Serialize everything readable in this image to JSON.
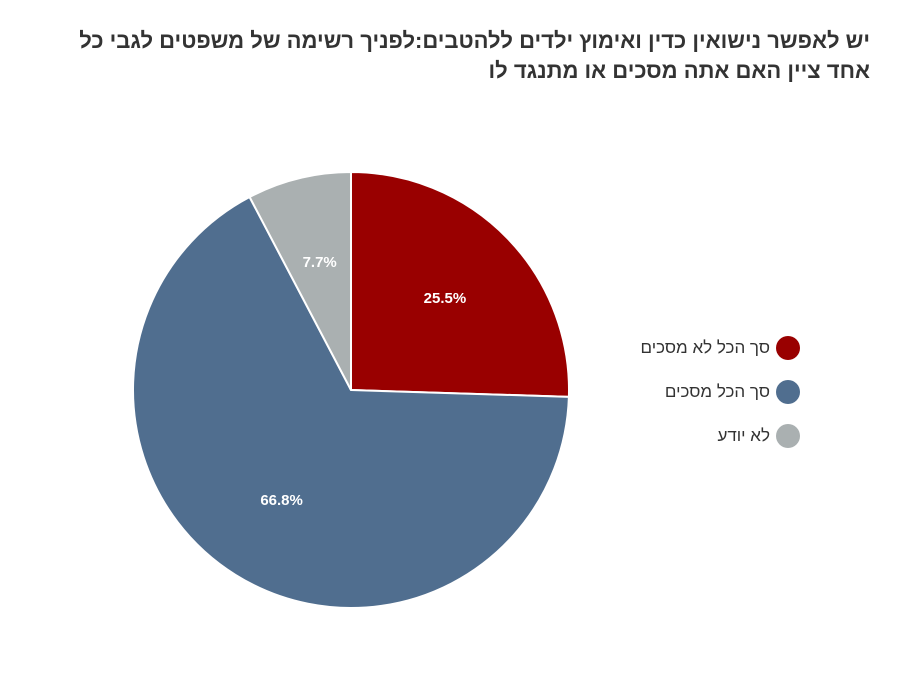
{
  "chart_data": {
    "type": "pie",
    "title_lines": [
      "יש לאפשר נישואין כדין ואימוץ ילדים ללהטבים:לפניך רשימה של משפטים  לגבי כל",
      "אחד ציין האם אתה מסכים או מתנגד לו"
    ],
    "slices": [
      {
        "label": "סך הכל לא מסכים",
        "value": 25.5,
        "display": "25.5%",
        "color": "#990000"
      },
      {
        "label": "סך הכל מסכים",
        "value": 66.8,
        "display": "66.8%",
        "color": "#506E8F"
      },
      {
        "label": "לא יודע",
        "value": 7.7,
        "display": "7.7%",
        "color": "#AAB0B1"
      }
    ],
    "start_angle_deg": 0,
    "direction": "clockwise",
    "legend_position": "right"
  }
}
